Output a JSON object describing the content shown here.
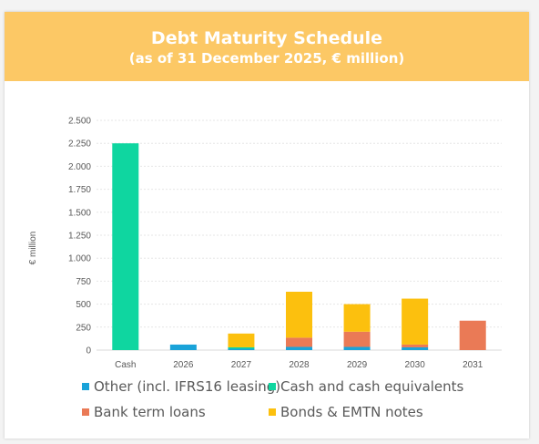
{
  "header": {
    "title": "Debt Maturity Schedule",
    "subtitle": "(as of 31 December 2025, € million)"
  },
  "colors": {
    "header_bg": "#fcc865",
    "other": "#1aa3d9",
    "cash": "#0fd6a0",
    "bank": "#ea7a56",
    "bonds": "#fcc00e"
  },
  "chart_data": {
    "type": "bar",
    "stacked": true,
    "categories": [
      "Cash",
      "2026",
      "2027",
      "2028",
      "2029",
      "2030",
      "2031"
    ],
    "series": [
      {
        "name": "Other (incl. IFRS16 leasing)",
        "color": "#1aa3d9",
        "values": [
          0,
          60,
          15,
          35,
          35,
          30,
          0
        ]
      },
      {
        "name": "Cash and cash equivalents",
        "color": "#0fd6a0",
        "values": [
          2250,
          0,
          15,
          0,
          0,
          0,
          0
        ]
      },
      {
        "name": "Bank term loans",
        "color": "#ea7a56",
        "values": [
          0,
          0,
          0,
          100,
          165,
          30,
          320
        ]
      },
      {
        "name": "Bonds & EMTN notes",
        "color": "#fcc00e",
        "values": [
          0,
          0,
          150,
          500,
          300,
          500,
          0
        ]
      }
    ],
    "ylabel": "€ million",
    "ylim": [
      0,
      2500
    ],
    "yticks": [
      0,
      250,
      500,
      750,
      1000,
      1250,
      1500,
      1750,
      2000,
      2250,
      2500
    ],
    "ytick_labels": [
      "0",
      "250",
      "500",
      "750",
      "1.000",
      "1.250",
      "1.500",
      "1.750",
      "2.000",
      "2.250",
      "2.500"
    ],
    "grid": true,
    "legend_position": "bottom",
    "legend_order": [
      0,
      1,
      2,
      3
    ]
  }
}
